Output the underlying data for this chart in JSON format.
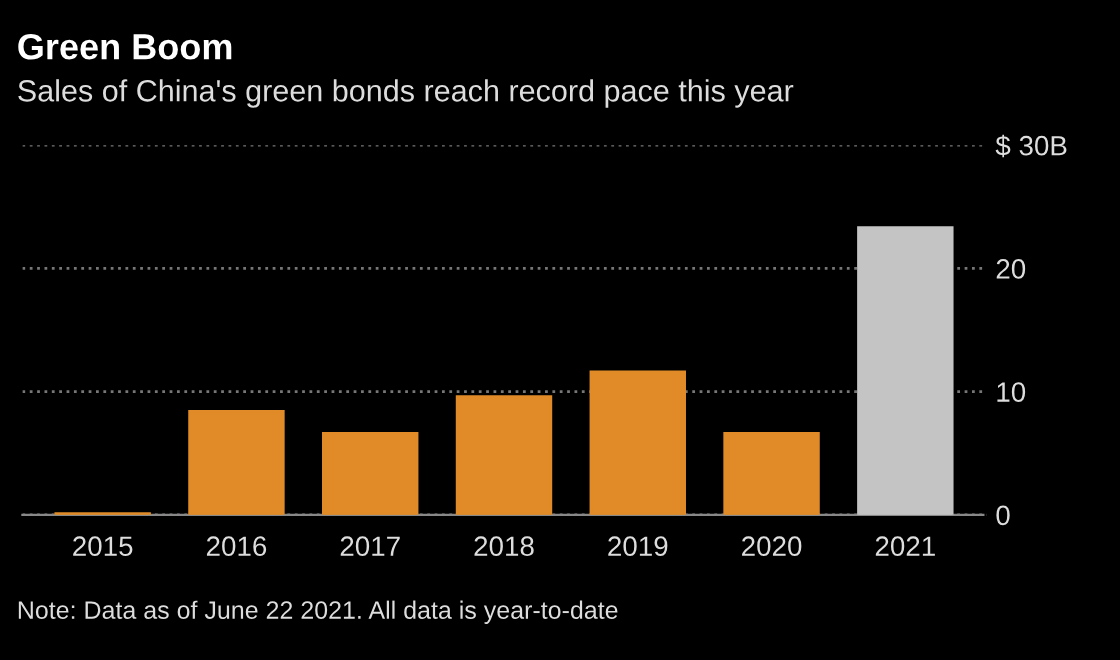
{
  "chart_data": {
    "type": "bar",
    "title": "Green Boom",
    "subtitle": "Sales of China's green bonds reach record pace this year",
    "categories": [
      "2015",
      "2016",
      "2017",
      "2018",
      "2019",
      "2020",
      "2021"
    ],
    "values": [
      0.1,
      8.4,
      6.6,
      9.6,
      11.6,
      6.6,
      23.3
    ],
    "colors": [
      "#e08b27",
      "#e08b27",
      "#e08b27",
      "#e08b27",
      "#e08b27",
      "#e08b27",
      "#c4c4c4"
    ],
    "ylim": [
      0,
      30
    ],
    "yticks": [
      0,
      10,
      20,
      {
        "value": 30,
        "label": "$ 30B"
      }
    ],
    "grid": "y",
    "annotations": [
      "Note: Data as of June 22 2021. All data is year-to-date"
    ]
  }
}
